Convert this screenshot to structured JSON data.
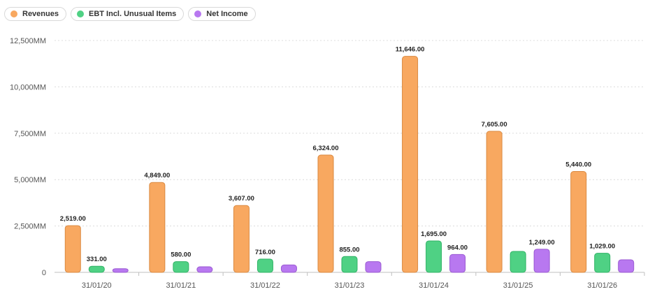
{
  "chart_data": {
    "type": "bar",
    "categories": [
      "31/01/20",
      "31/01/21",
      "31/01/22",
      "31/01/23",
      "31/01/24",
      "31/01/25",
      "31/01/26"
    ],
    "series": [
      {
        "name": "Revenues",
        "color": "#f8a860",
        "values": [
          2519.0,
          4849.0,
          3607.0,
          6324.0,
          11646.0,
          7605.0,
          5440.0
        ],
        "labels": [
          "2,519.00",
          "4,849.00",
          "3,607.00",
          "6,324.00",
          "11,646.00",
          "7,605.00",
          "5,440.00"
        ]
      },
      {
        "name": "EBT Incl. Unusual Items",
        "color": "#4fd184",
        "values": [
          331.0,
          580.0,
          716.0,
          855.0,
          1695.0,
          1130,
          1029.0
        ],
        "labels": [
          "331.00",
          "580.00",
          "716.00",
          "855.00",
          "1,695.00",
          "",
          "1,029.00"
        ]
      },
      {
        "name": "Net Income",
        "color": "#b878f0",
        "values": [
          200,
          300,
          400,
          580,
          964.0,
          1249.0,
          680
        ],
        "labels": [
          "",
          "",
          "",
          "",
          "964.00",
          "1,249.00",
          ""
        ]
      }
    ],
    "ylim": [
      0,
      12500
    ],
    "yticks": [
      0,
      2500,
      5000,
      7500,
      10000,
      12500
    ],
    "ytick_labels": [
      "0",
      "2,500MM",
      "5,000MM",
      "7,500MM",
      "10,000MM",
      "12,500MM"
    ],
    "grid": true,
    "legend_position": "top-left",
    "title": "",
    "xlabel": "",
    "ylabel": ""
  }
}
